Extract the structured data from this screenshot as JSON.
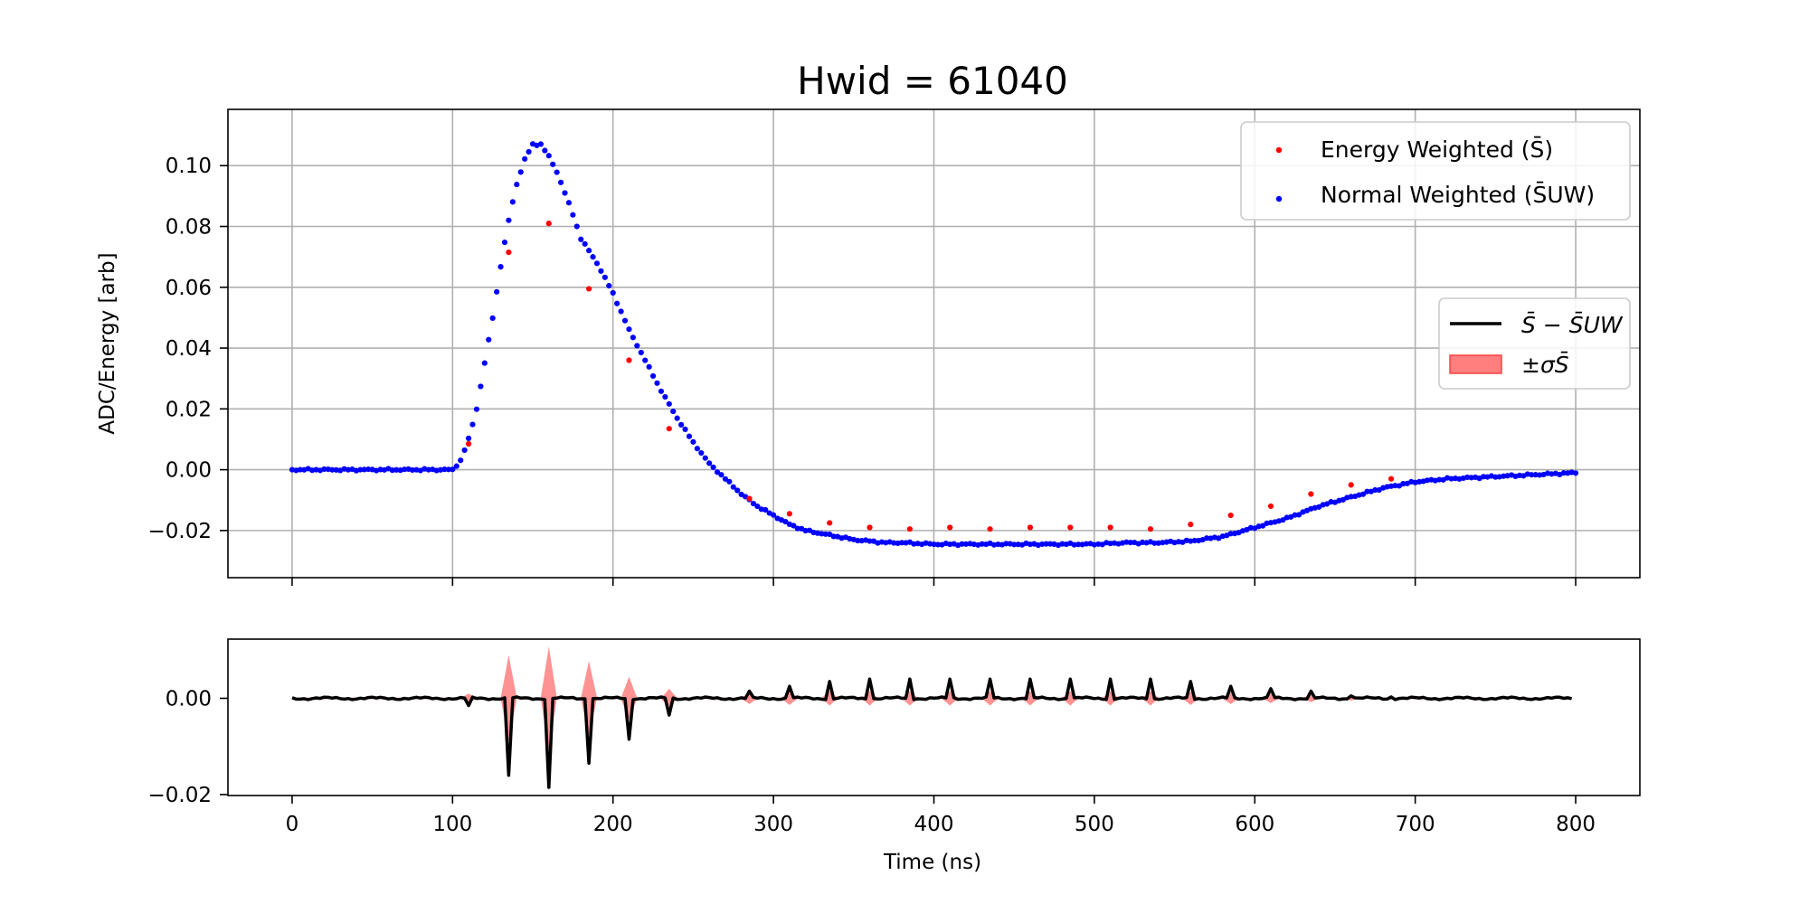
{
  "chart_data": [
    {
      "type": "scatter",
      "title": "Hwid = 61040",
      "xlabel": "",
      "ylabel": "ADC/Energy [arb]",
      "xlim": [
        -40,
        840
      ],
      "ylim": [
        -0.0355,
        0.1185
      ],
      "xticks": [
        0,
        100,
        200,
        300,
        400,
        500,
        600,
        700,
        800
      ],
      "yticks": [
        -0.02,
        0.0,
        0.02,
        0.04,
        0.06,
        0.08,
        0.1
      ],
      "ytick_labels": [
        "−0.02",
        "0.00",
        "0.02",
        "0.04",
        "0.06",
        "0.08",
        "0.10"
      ],
      "grid": true,
      "legend": {
        "placement": "top-right",
        "entries": [
          "Energy Weighted (S̄)",
          "Normal Weighted (S̄UW)"
        ]
      },
      "series": [
        {
          "name": "Normal Weighted (S̄UW)",
          "color": "#0000ff",
          "marker": "point",
          "x_start": 0,
          "x_step": 2.5,
          "note_y": "sampled every 2.5 ns from 0 to 800",
          "key_points": {
            "x": [
              0,
              100,
              105,
              110,
              115,
              120,
              125,
              130,
              135,
              140,
              145,
              150,
              155,
              160,
              165,
              170,
              175,
              180,
              190,
              200,
              210,
              220,
              230,
              240,
              250,
              260,
              270,
              280,
              290,
              300,
              310,
              320,
              330,
              340,
              350,
              360,
              370,
              380,
              400,
              450,
              500,
              520,
              540,
              560,
              580,
              600,
              620,
              640,
              660,
              680,
              700,
              720,
              740,
              760,
              780,
              800
            ],
            "y": [
              0.0,
              0.0,
              0.003,
              0.01,
              0.02,
              0.035,
              0.05,
              0.067,
              0.082,
              0.094,
              0.102,
              0.107,
              0.107,
              0.103,
              0.098,
              0.091,
              0.084,
              0.076,
              0.068,
              0.058,
              0.046,
              0.036,
              0.026,
              0.017,
              0.009,
              0.002,
              -0.003,
              -0.008,
              -0.012,
              -0.015,
              -0.018,
              -0.02,
              -0.021,
              -0.022,
              -0.023,
              -0.0235,
              -0.024,
              -0.024,
              -0.0245,
              -0.0245,
              -0.0245,
              -0.024,
              -0.024,
              -0.0235,
              -0.022,
              -0.019,
              -0.016,
              -0.012,
              -0.009,
              -0.006,
              -0.004,
              -0.003,
              -0.0025,
              -0.002,
              -0.0015,
              -0.001
            ]
          }
        },
        {
          "name": "Energy Weighted (S̄)",
          "color": "#ff0000",
          "marker": "point",
          "x": [
            110,
            135,
            160,
            185,
            210,
            235,
            285,
            310,
            335,
            360,
            385,
            410,
            435,
            460,
            485,
            510,
            535,
            560,
            585,
            610,
            635,
            660,
            685
          ],
          "y": [
            0.0085,
            0.0715,
            0.081,
            0.0595,
            0.036,
            0.0135,
            -0.0095,
            -0.0145,
            -0.0175,
            -0.019,
            -0.0195,
            -0.019,
            -0.0195,
            -0.019,
            -0.019,
            -0.019,
            -0.0195,
            -0.018,
            -0.015,
            -0.012,
            -0.008,
            -0.005,
            -0.003
          ]
        }
      ]
    },
    {
      "type": "line",
      "xlabel": "Time (ns)",
      "ylabel": "",
      "xlim": [
        -40,
        840
      ],
      "ylim": [
        -0.0202,
        0.0123
      ],
      "xticks": [
        0,
        100,
        200,
        300,
        400,
        500,
        600,
        700,
        800
      ],
      "xtick_labels": [
        "0",
        "100",
        "200",
        "300",
        "400",
        "500",
        "600",
        "700",
        "800"
      ],
      "yticks": [
        -0.02,
        0.0
      ],
      "ytick_labels": [
        "−0.02",
        "0.00"
      ],
      "grid": false,
      "legend": {
        "placement": "right",
        "entries": [
          "S̄ − S̄UW",
          "±σS̄"
        ]
      },
      "spike_x": [
        110,
        135,
        160,
        185,
        210,
        235,
        285,
        310,
        335,
        360,
        385,
        410,
        435,
        460,
        485,
        510,
        535,
        560,
        585,
        610,
        635,
        660,
        685
      ],
      "series": [
        {
          "name": "S̄ − S̄UW",
          "color": "#000000",
          "spike_values": [
            -0.0015,
            -0.016,
            -0.0185,
            -0.0135,
            -0.0085,
            -0.0035,
            0.0015,
            0.0025,
            0.0035,
            0.004,
            0.004,
            0.004,
            0.004,
            0.004,
            0.004,
            0.004,
            0.004,
            0.0035,
            0.0025,
            0.002,
            0.0015,
            0.0005,
            0.0003
          ]
        },
        {
          "name": "±σS̄",
          "color": "#ff7f7f",
          "band_halfwidth": [
            0.001,
            0.009,
            0.0108,
            0.0078,
            0.0045,
            0.002,
            0.0012,
            0.0014,
            0.0015,
            0.0015,
            0.0015,
            0.0015,
            0.0015,
            0.0015,
            0.0015,
            0.0015,
            0.0015,
            0.0014,
            0.0012,
            0.001,
            0.0008,
            0.0005,
            0.0003
          ]
        }
      ]
    }
  ]
}
